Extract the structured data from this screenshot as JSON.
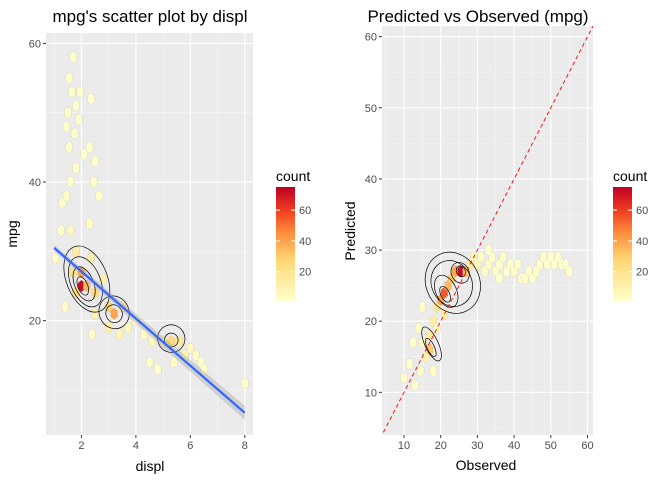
{
  "chart_data": [
    {
      "type": "scatter",
      "subtype": "hexbin-with-density-contours-and-linear-fit",
      "title": "mpg's scatter plot by displ",
      "xlabel": "displ",
      "ylabel": "mpg",
      "xlim": [
        0.7,
        8.3
      ],
      "ylim": [
        3.5,
        61.5
      ],
      "xticks": [
        2,
        4,
        6,
        8
      ],
      "yticks": [
        20,
        40,
        60
      ],
      "grid": true,
      "fill_scale": {
        "title": "count",
        "breaks": [
          20,
          40,
          60
        ],
        "limits": [
          1,
          75
        ],
        "low_color": "#FFFFCC",
        "mid_color": "#FD8D3C",
        "high_color": "#BD0026"
      },
      "hexbins": [
        {
          "x": 1.05,
          "y": 29,
          "count": 3
        },
        {
          "x": 1.25,
          "y": 33,
          "count": 2
        },
        {
          "x": 1.3,
          "y": 37,
          "count": 2
        },
        {
          "x": 1.45,
          "y": 38,
          "count": 3
        },
        {
          "x": 1.45,
          "y": 48,
          "count": 2
        },
        {
          "x": 1.5,
          "y": 50,
          "count": 2
        },
        {
          "x": 1.55,
          "y": 45,
          "count": 2
        },
        {
          "x": 1.55,
          "y": 55,
          "count": 1
        },
        {
          "x": 1.6,
          "y": 40,
          "count": 2
        },
        {
          "x": 1.65,
          "y": 53,
          "count": 2
        },
        {
          "x": 1.7,
          "y": 58,
          "count": 1
        },
        {
          "x": 1.75,
          "y": 47,
          "count": 2
        },
        {
          "x": 1.8,
          "y": 51,
          "count": 1
        },
        {
          "x": 1.8,
          "y": 42,
          "count": 2
        },
        {
          "x": 1.9,
          "y": 49,
          "count": 2
        },
        {
          "x": 1.95,
          "y": 53,
          "count": 2
        },
        {
          "x": 2.1,
          "y": 44,
          "count": 1
        },
        {
          "x": 2.3,
          "y": 45,
          "count": 2
        },
        {
          "x": 2.35,
          "y": 52,
          "count": 1
        },
        {
          "x": 2.45,
          "y": 40,
          "count": 2
        },
        {
          "x": 2.5,
          "y": 43,
          "count": 1
        },
        {
          "x": 2.65,
          "y": 38,
          "count": 1
        },
        {
          "x": 2.3,
          "y": 34,
          "count": 3
        },
        {
          "x": 1.6,
          "y": 33,
          "count": 6
        },
        {
          "x": 1.8,
          "y": 30,
          "count": 14
        },
        {
          "x": 1.7,
          "y": 27,
          "count": 20
        },
        {
          "x": 2.0,
          "y": 27,
          "count": 40
        },
        {
          "x": 2.0,
          "y": 25,
          "count": 72
        },
        {
          "x": 2.2,
          "y": 25,
          "count": 35
        },
        {
          "x": 1.8,
          "y": 24,
          "count": 22
        },
        {
          "x": 2.35,
          "y": 29,
          "count": 12
        },
        {
          "x": 2.5,
          "y": 24,
          "count": 25
        },
        {
          "x": 2.5,
          "y": 21,
          "count": 10
        },
        {
          "x": 2.8,
          "y": 26,
          "count": 10
        },
        {
          "x": 3.0,
          "y": 22,
          "count": 28
        },
        {
          "x": 3.2,
          "y": 21,
          "count": 40
        },
        {
          "x": 3.5,
          "y": 22,
          "count": 15
        },
        {
          "x": 3.0,
          "y": 19,
          "count": 12
        },
        {
          "x": 3.4,
          "y": 18,
          "count": 8
        },
        {
          "x": 3.7,
          "y": 19,
          "count": 6
        },
        {
          "x": 4.0,
          "y": 20,
          "count": 5
        },
        {
          "x": 4.3,
          "y": 18,
          "count": 4
        },
        {
          "x": 4.6,
          "y": 17,
          "count": 6
        },
        {
          "x": 5.0,
          "y": 17,
          "count": 12
        },
        {
          "x": 5.3,
          "y": 17,
          "count": 25
        },
        {
          "x": 5.6,
          "y": 17,
          "count": 15
        },
        {
          "x": 5.8,
          "y": 15,
          "count": 8
        },
        {
          "x": 6.0,
          "y": 16,
          "count": 5
        },
        {
          "x": 6.2,
          "y": 15,
          "count": 3
        },
        {
          "x": 6.4,
          "y": 14,
          "count": 2
        },
        {
          "x": 5.4,
          "y": 14,
          "count": 3
        },
        {
          "x": 4.5,
          "y": 14,
          "count": 2
        },
        {
          "x": 4.8,
          "y": 13,
          "count": 1
        },
        {
          "x": 6.5,
          "y": 13,
          "count": 1
        },
        {
          "x": 8.0,
          "y": 11,
          "count": 1
        },
        {
          "x": 2.4,
          "y": 18,
          "count": 3
        },
        {
          "x": 1.4,
          "y": 22,
          "count": 3
        }
      ],
      "contours": [
        {
          "cx": 2.05,
          "cy": 25.0,
          "rx": 0.18,
          "ry": 1.4
        },
        {
          "cx": 2.1,
          "cy": 25.3,
          "rx": 0.35,
          "ry": 2.6
        },
        {
          "cx": 2.15,
          "cy": 25.6,
          "rx": 0.55,
          "ry": 3.8
        },
        {
          "cx": 2.2,
          "cy": 26.0,
          "rx": 0.75,
          "ry": 5.0
        },
        {
          "cx": 3.2,
          "cy": 21.0,
          "rx": 0.3,
          "ry": 1.3
        },
        {
          "cx": 3.2,
          "cy": 21.2,
          "rx": 0.55,
          "ry": 2.4
        },
        {
          "cx": 5.3,
          "cy": 17.2,
          "rx": 0.25,
          "ry": 1.0
        },
        {
          "cx": 5.3,
          "cy": 17.4,
          "rx": 0.5,
          "ry": 2.0
        }
      ],
      "regression_line": {
        "x": [
          1.0,
          8.0
        ],
        "y": [
          30.5,
          6.7
        ],
        "color": "#3366FF"
      }
    },
    {
      "type": "scatter",
      "subtype": "hexbin-with-density-contours",
      "title": "Predicted vs Observed (mpg)",
      "xlabel": "Observed",
      "ylabel": "Predicted",
      "xlim": [
        4,
        61.5
      ],
      "ylim": [
        4,
        61.5
      ],
      "xticks": [
        10,
        20,
        30,
        40,
        50,
        60
      ],
      "yticks": [
        10,
        20,
        30,
        40,
        50,
        60
      ],
      "grid": true,
      "reference_line": {
        "slope": 1,
        "intercept": 0,
        "color": "#FF0000",
        "style": "dashed"
      },
      "fill_scale": {
        "title": "count",
        "breaks": [
          20,
          40,
          60
        ],
        "limits": [
          1,
          75
        ],
        "low_color": "#FFFFCC",
        "mid_color": "#FD8D3C",
        "high_color": "#BD0026"
      },
      "hexbins": [
        {
          "x": 10,
          "y": 12,
          "count": 2
        },
        {
          "x": 11.5,
          "y": 14,
          "count": 2
        },
        {
          "x": 12.5,
          "y": 17,
          "count": 2
        },
        {
          "x": 14,
          "y": 19,
          "count": 2
        },
        {
          "x": 15,
          "y": 22,
          "count": 3
        },
        {
          "x": 13,
          "y": 11,
          "count": 1
        },
        {
          "x": 14.5,
          "y": 13,
          "count": 2
        },
        {
          "x": 16,
          "y": 15,
          "count": 10
        },
        {
          "x": 17,
          "y": 16,
          "count": 30
        },
        {
          "x": 17,
          "y": 18,
          "count": 12
        },
        {
          "x": 18,
          "y": 20,
          "count": 12
        },
        {
          "x": 19,
          "y": 22,
          "count": 18
        },
        {
          "x": 20,
          "y": 23,
          "count": 40
        },
        {
          "x": 21,
          "y": 24,
          "count": 55
        },
        {
          "x": 22,
          "y": 25,
          "count": 35
        },
        {
          "x": 23,
          "y": 26,
          "count": 30
        },
        {
          "x": 24,
          "y": 27,
          "count": 40
        },
        {
          "x": 25.5,
          "y": 27,
          "count": 72
        },
        {
          "x": 27,
          "y": 27,
          "count": 30
        },
        {
          "x": 28,
          "y": 28,
          "count": 12
        },
        {
          "x": 29,
          "y": 29,
          "count": 6
        },
        {
          "x": 30,
          "y": 28,
          "count": 5
        },
        {
          "x": 31,
          "y": 29,
          "count": 3
        },
        {
          "x": 32,
          "y": 27,
          "count": 4
        },
        {
          "x": 33,
          "y": 28,
          "count": 3
        },
        {
          "x": 34,
          "y": 29,
          "count": 2
        },
        {
          "x": 35,
          "y": 27,
          "count": 2
        },
        {
          "x": 36,
          "y": 28,
          "count": 2
        },
        {
          "x": 37,
          "y": 29,
          "count": 2
        },
        {
          "x": 38,
          "y": 27,
          "count": 1
        },
        {
          "x": 39,
          "y": 28,
          "count": 2
        },
        {
          "x": 40,
          "y": 27,
          "count": 2
        },
        {
          "x": 41,
          "y": 28,
          "count": 1
        },
        {
          "x": 42,
          "y": 26,
          "count": 1
        },
        {
          "x": 43,
          "y": 26,
          "count": 1
        },
        {
          "x": 44,
          "y": 27,
          "count": 1
        },
        {
          "x": 45,
          "y": 26,
          "count": 1
        },
        {
          "x": 46,
          "y": 27,
          "count": 2
        },
        {
          "x": 47,
          "y": 28,
          "count": 1
        },
        {
          "x": 48,
          "y": 29,
          "count": 1
        },
        {
          "x": 49,
          "y": 28,
          "count": 1
        },
        {
          "x": 50,
          "y": 29,
          "count": 1
        },
        {
          "x": 51,
          "y": 28,
          "count": 1
        },
        {
          "x": 52,
          "y": 29,
          "count": 1
        },
        {
          "x": 53,
          "y": 28,
          "count": 1
        },
        {
          "x": 54,
          "y": 28,
          "count": 1
        },
        {
          "x": 55,
          "y": 27,
          "count": 1
        },
        {
          "x": 33,
          "y": 30,
          "count": 1
        },
        {
          "x": 36,
          "y": 26,
          "count": 1
        },
        {
          "x": 19,
          "y": 19,
          "count": 5
        },
        {
          "x": 21,
          "y": 21,
          "count": 12
        },
        {
          "x": 15,
          "y": 17,
          "count": 4
        },
        {
          "x": 18,
          "y": 13,
          "count": 2
        }
      ],
      "contours": [
        {
          "cx": 25.5,
          "cy": 27.0,
          "rx": 1.2,
          "ry": 0.8
        },
        {
          "cx": 25.3,
          "cy": 26.8,
          "rx": 2.4,
          "ry": 1.5
        },
        {
          "cx": 21.2,
          "cy": 23.8,
          "rx": 1.2,
          "ry": 1.2
        },
        {
          "cx": 21.5,
          "cy": 24.2,
          "rx": 2.8,
          "ry": 2.4
        },
        {
          "cx": 23.0,
          "cy": 25.3,
          "rx": 5.5,
          "ry": 3.3
        },
        {
          "cx": 23.3,
          "cy": 25.4,
          "rx": 7.3,
          "ry": 4.4
        },
        {
          "cx": 17.3,
          "cy": 16.3,
          "rx": 1.0,
          "ry": 1.4
        },
        {
          "cx": 17.5,
          "cy": 16.8,
          "rx": 1.8,
          "ry": 2.6
        }
      ]
    }
  ]
}
